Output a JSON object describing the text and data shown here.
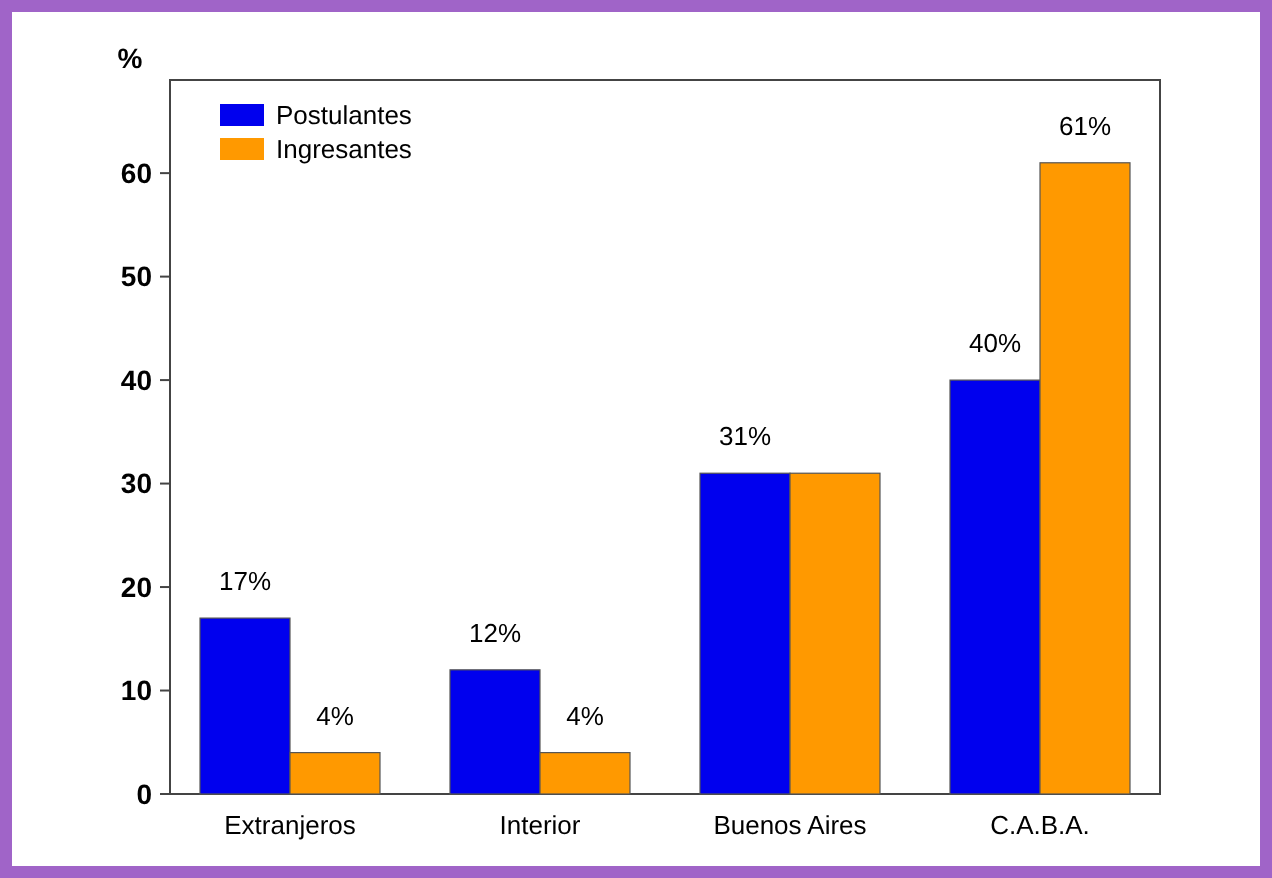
{
  "chart_data": {
    "type": "bar",
    "ylabel": "%",
    "categories": [
      "Extranjeros",
      "Interior",
      "Buenos Aires",
      "C.A.B.A."
    ],
    "series": [
      {
        "name": "Postulantes",
        "color": "#0000ee",
        "values": [
          17,
          12,
          31,
          40
        ],
        "value_labels": [
          "17%",
          "12%",
          "31%",
          "40%"
        ]
      },
      {
        "name": "Ingresantes",
        "color": "#ff9900",
        "values": [
          4,
          4,
          31,
          61
        ],
        "value_labels": [
          "4%",
          "4%",
          null,
          "61%"
        ]
      }
    ],
    "ylim": [
      0,
      69
    ],
    "yticks": [
      0,
      10,
      20,
      30,
      40,
      50,
      60
    ],
    "legend": "top left",
    "grid": false
  }
}
